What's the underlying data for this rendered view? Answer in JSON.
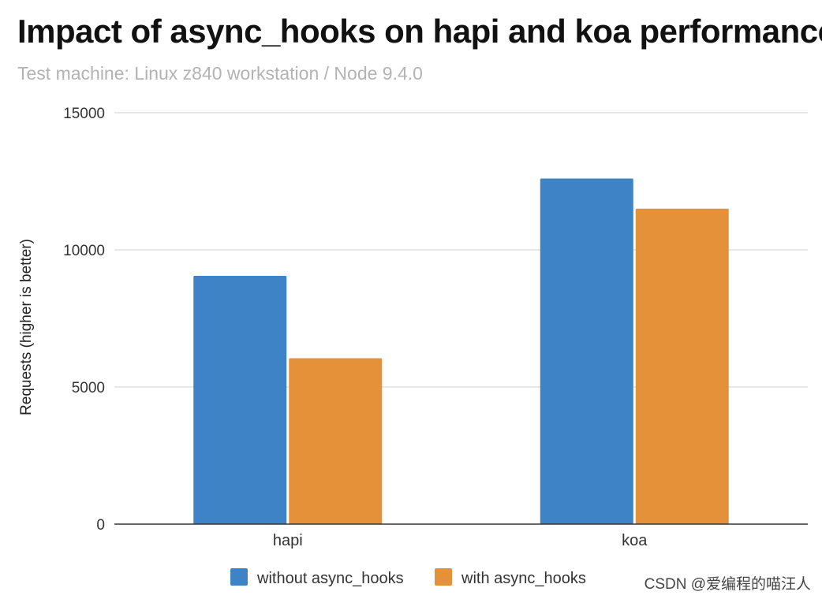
{
  "chart_data": {
    "type": "bar",
    "title": "Impact of async_hooks on hapi and koa performance",
    "subtitle": "Test machine: Linux z840 workstation / Node 9.4.0",
    "xlabel": "",
    "ylabel": "Requests (higher is better)",
    "categories": [
      "hapi",
      "koa"
    ],
    "series": [
      {
        "name": "without async_hooks",
        "color": "#3f83c7",
        "values": [
          9050,
          12600
        ]
      },
      {
        "name": "with async_hooks",
        "color": "#e5913a",
        "values": [
          6050,
          11500
        ]
      }
    ],
    "ylim": [
      0,
      15000
    ],
    "yticks": [
      "0",
      "5000",
      "10000",
      "15000"
    ],
    "grid": true,
    "legend": "bottom"
  },
  "watermark": "CSDN @爱编程的喵汪人"
}
